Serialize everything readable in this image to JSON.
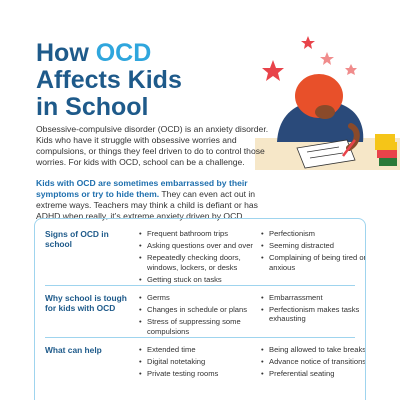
{
  "title": {
    "line1_pre": "How ",
    "line1_accent": "OCD",
    "line2": "Affects Kids",
    "line3": "in School"
  },
  "intro": "Obsessive-compulsive disorder (OCD) is an anxiety disorder. Kids who have it struggle with obsessive worries and compulsions, or things they feel driven to do to control those worries. For kids with OCD, school can be a challenge.",
  "intro2": {
    "highlight": "Kids with OCD are sometimes embarrassed by their symptoms or try to hide them.",
    "rest": " They can even act out in extreme ways. Teachers may think a child is defiant or has ADHD when really, it’s extreme anxiety driven by OCD."
  },
  "table": {
    "rows": [
      {
        "heading": "Signs of OCD in school",
        "col1": [
          "Frequent bathroom trips",
          "Asking questions over and over",
          "Repeatedly checking doors, windows, lockers, or desks",
          "Getting stuck on tasks"
        ],
        "col2": [
          "Perfectionism",
          "Seeming distracted",
          "Complaining of being tired or anxious"
        ]
      },
      {
        "heading": "Why school is tough for kids with OCD",
        "col1": [
          "Germs",
          "Changes in schedule or plans",
          "Stress of suppressing some compulsions"
        ],
        "col2": [
          "Embarrassment",
          "Perfectionism makes tasks exhausting"
        ]
      },
      {
        "heading": "What can help",
        "col1": [
          "Extended time",
          "Digital notetaking",
          "Private testing rooms"
        ],
        "col2": [
          "Being allowed to take breaks",
          "Advance notice of transitions",
          "Preferential seating"
        ]
      }
    ]
  },
  "colors": {
    "title": "#1e5a8a",
    "accent": "#2fa6dd",
    "border": "#9fd4ee",
    "hair": "#e8502a",
    "shirt": "#2a4a7a"
  }
}
